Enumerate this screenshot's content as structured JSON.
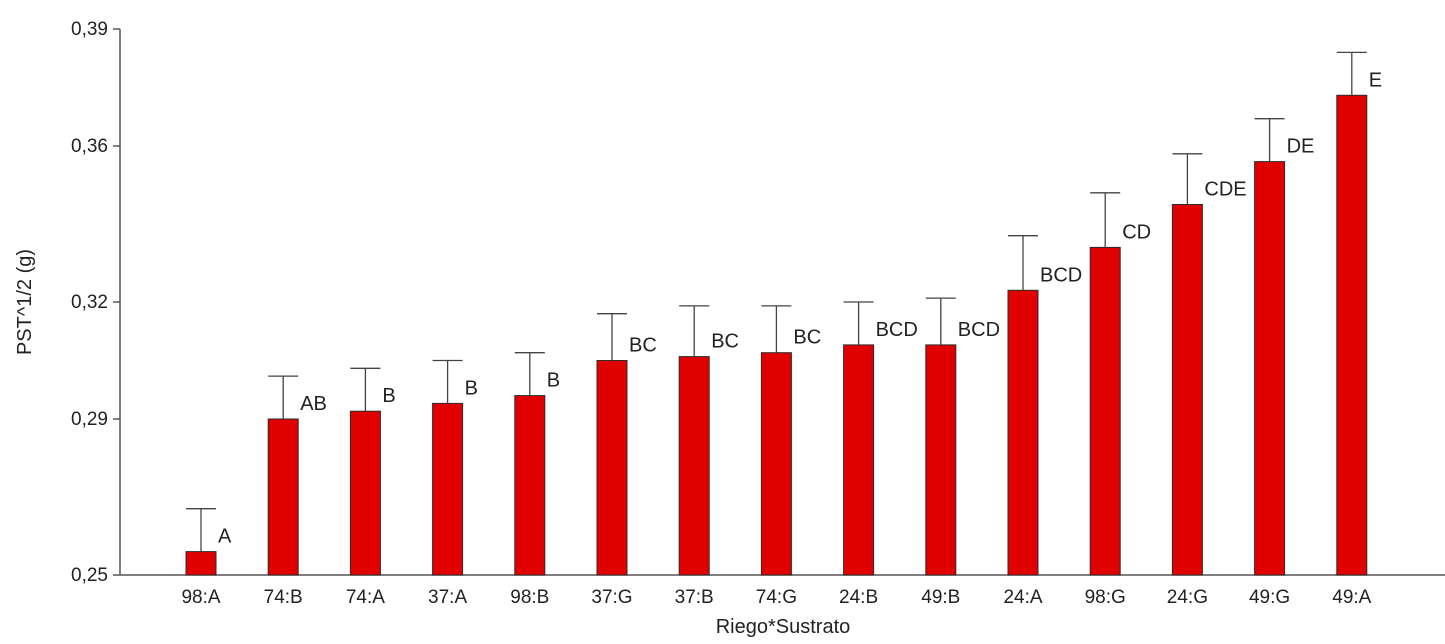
{
  "chart_data": {
    "type": "bar",
    "title": "",
    "xlabel": "Riego*Sustrato",
    "ylabel": "PST^1/2 (g)",
    "ylim": [
      0.25,
      0.39
    ],
    "yticks": [
      0.25,
      0.29,
      0.32,
      0.36,
      0.39
    ],
    "ytick_labels": [
      "0,25",
      "0,29",
      "0,32",
      "0,36",
      "0,39"
    ],
    "categories": [
      "98:A",
      "74:B",
      "74:A",
      "37:A",
      "98:B",
      "37:G",
      "37:B",
      "74:G",
      "24:B",
      "49:B",
      "24:A",
      "98:G",
      "24:G",
      "49:G",
      "49:A"
    ],
    "values": [
      0.256,
      0.29,
      0.292,
      0.294,
      0.296,
      0.305,
      0.306,
      0.307,
      0.309,
      0.309,
      0.323,
      0.334,
      0.345,
      0.356,
      0.373
    ],
    "error_upper": [
      0.267,
      0.301,
      0.303,
      0.305,
      0.307,
      0.317,
      0.319,
      0.319,
      0.32,
      0.321,
      0.337,
      0.348,
      0.358,
      0.367,
      0.384
    ],
    "group_labels": [
      "A",
      "AB",
      "B",
      "B",
      "B",
      "BC",
      "BC",
      "BC",
      "BCD",
      "BCD",
      "BCD",
      "CD",
      "CDE",
      "DE",
      "E"
    ],
    "grid": false,
    "error_bars": true,
    "bar_color": "#e00000",
    "bar_edge_color": "#2b2b2b",
    "axis_color": "#555555"
  }
}
